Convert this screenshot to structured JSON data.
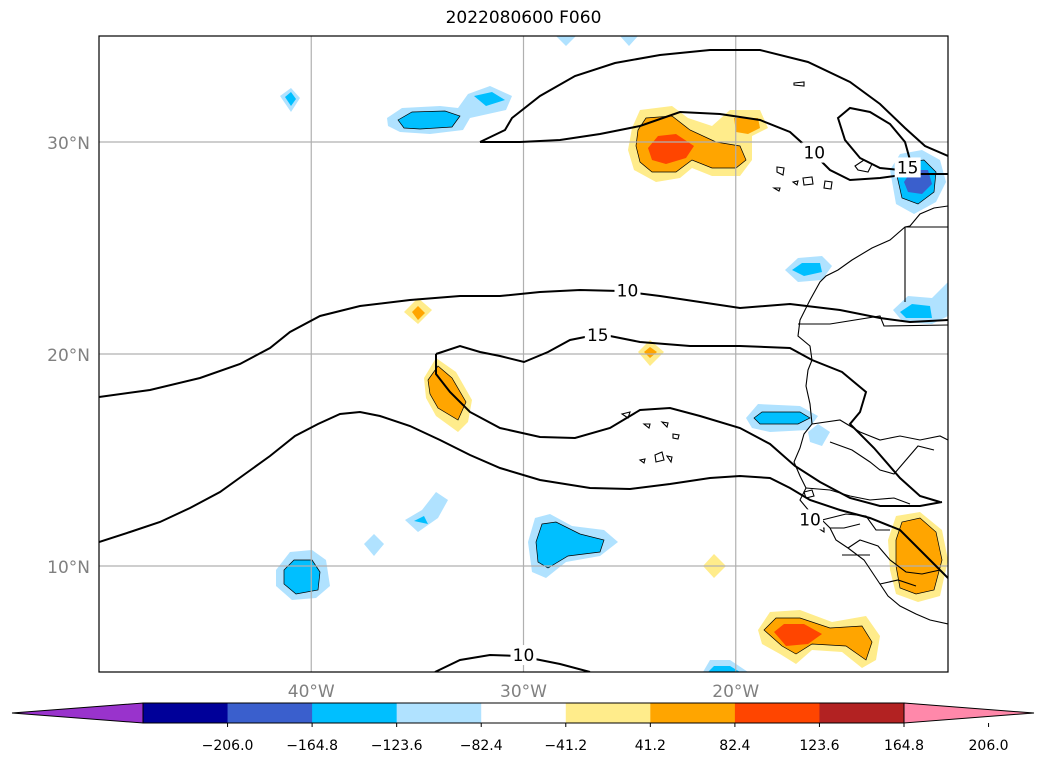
{
  "title": "2022080600 F060",
  "map": {
    "lon_range": [
      -50,
      -10
    ],
    "lat_range": [
      5,
      35
    ],
    "lat_ticks": [
      {
        "value": 30,
        "label": "30°N"
      },
      {
        "value": 20,
        "label": "20°N"
      },
      {
        "value": 10,
        "label": "10°N"
      }
    ],
    "lon_ticks": [
      {
        "value": -40,
        "label": "40°W"
      },
      {
        "value": -30,
        "label": "30°W"
      },
      {
        "value": -20,
        "label": "20°W"
      }
    ],
    "grid_color": "#b0b0b0",
    "tick_label_color": "#808080",
    "contour_labels": [
      {
        "text": "10",
        "lon": -25.1,
        "lat": 23.0
      },
      {
        "text": "15",
        "lon": -26.5,
        "lat": 20.9
      },
      {
        "text": "10",
        "lon": -16.3,
        "lat": 29.5
      },
      {
        "text": "15",
        "lon": -11.9,
        "lat": 28.8
      },
      {
        "text": "10",
        "lon": -16.5,
        "lat": 12.2
      },
      {
        "text": "10",
        "lon": -30.0,
        "lat": 5.8
      }
    ]
  },
  "colorbar": {
    "colors": [
      "#9933cc",
      "#000099",
      "#3a5fcd",
      "#00bfff",
      "#b0e2ff",
      "#ffffff",
      "#ffec8b",
      "#ffa500",
      "#ff4500",
      "#b22222",
      "#ff88aa"
    ],
    "tick_labels": [
      "−206.0",
      "−164.8",
      "−123.6",
      "−82.4",
      "−41.2",
      "41.2",
      "82.4",
      "123.6",
      "164.8",
      "206.0"
    ]
  }
}
